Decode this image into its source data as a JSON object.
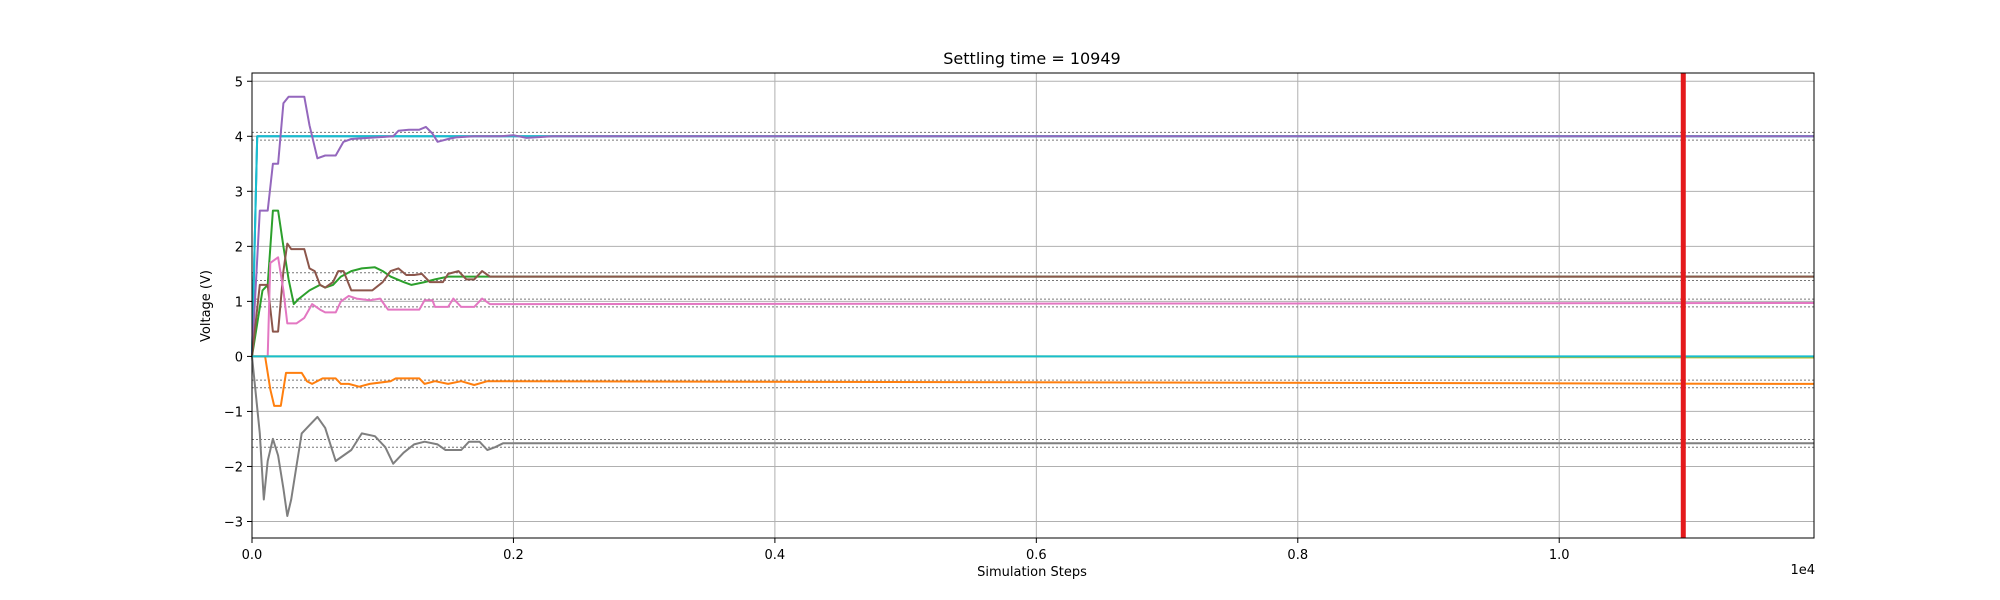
{
  "chart_data": {
    "type": "line",
    "title": "Settling time = 10949",
    "xlabel": "Simulation Steps",
    "ylabel": "Voltage (V)",
    "x_offset_label": "1e4",
    "xlim": [
      0,
      11949
    ],
    "ylim": [
      -3.3,
      5.15
    ],
    "xticks": [
      0,
      2000,
      4000,
      6000,
      8000,
      10000
    ],
    "xtick_labels": [
      "0.0",
      "0.2",
      "0.4",
      "0.6",
      "0.8",
      "1.0"
    ],
    "yticks": [
      -3,
      -2,
      -1,
      0,
      1,
      2,
      3,
      4,
      5
    ],
    "ytick_labels": [
      "−3",
      "−2",
      "−1",
      "0",
      "1",
      "2",
      "3",
      "4",
      "5"
    ],
    "grid": true,
    "legend": "none",
    "settling_time": 10949,
    "settling_color": "#e41a1c",
    "targets": [
      4.0,
      1.45,
      0.97,
      -0.5,
      -1.58
    ],
    "target_band": 0.07,
    "series": [
      {
        "color": "#1f77b4",
        "points": [
          [
            0,
            0
          ],
          [
            40,
            4.0
          ],
          [
            11949,
            4.0
          ]
        ]
      },
      {
        "color": "#17becf",
        "points": [
          [
            0,
            0
          ],
          [
            40,
            4.0
          ],
          [
            11949,
            4.0
          ]
        ]
      },
      {
        "color": "#9467bd",
        "points": [
          [
            0,
            0
          ],
          [
            60,
            2.65
          ],
          [
            120,
            2.65
          ],
          [
            160,
            3.5
          ],
          [
            200,
            3.5
          ],
          [
            240,
            4.6
          ],
          [
            280,
            4.72
          ],
          [
            400,
            4.72
          ],
          [
            440,
            4.2
          ],
          [
            500,
            3.6
          ],
          [
            560,
            3.65
          ],
          [
            640,
            3.65
          ],
          [
            700,
            3.9
          ],
          [
            760,
            3.95
          ],
          [
            1080,
            4.0
          ],
          [
            1120,
            4.1
          ],
          [
            1200,
            4.12
          ],
          [
            1280,
            4.12
          ],
          [
            1330,
            4.17
          ],
          [
            1380,
            4.05
          ],
          [
            1420,
            3.9
          ],
          [
            1500,
            3.95
          ],
          [
            1560,
            3.98
          ],
          [
            1700,
            4.0
          ],
          [
            1900,
            4.0
          ],
          [
            2000,
            4.02
          ],
          [
            2100,
            3.97
          ],
          [
            2300,
            4.0
          ],
          [
            11949,
            4.0
          ]
        ]
      },
      {
        "color": "#2ca02c",
        "points": [
          [
            0,
            0
          ],
          [
            80,
            1.2
          ],
          [
            120,
            1.3
          ],
          [
            160,
            2.65
          ],
          [
            200,
            2.65
          ],
          [
            240,
            2.0
          ],
          [
            280,
            1.4
          ],
          [
            320,
            0.95
          ],
          [
            360,
            1.05
          ],
          [
            440,
            1.2
          ],
          [
            520,
            1.3
          ],
          [
            560,
            1.25
          ],
          [
            620,
            1.3
          ],
          [
            680,
            1.45
          ],
          [
            760,
            1.55
          ],
          [
            840,
            1.6
          ],
          [
            940,
            1.62
          ],
          [
            1000,
            1.55
          ],
          [
            1060,
            1.45
          ],
          [
            1160,
            1.35
          ],
          [
            1220,
            1.3
          ],
          [
            1320,
            1.35
          ],
          [
            1400,
            1.4
          ],
          [
            1500,
            1.45
          ],
          [
            1700,
            1.45
          ],
          [
            11949,
            1.45
          ]
        ]
      },
      {
        "color": "#8c564b",
        "points": [
          [
            0,
            0
          ],
          [
            60,
            1.3
          ],
          [
            120,
            1.3
          ],
          [
            160,
            0.45
          ],
          [
            200,
            0.45
          ],
          [
            240,
            1.55
          ],
          [
            270,
            2.05
          ],
          [
            300,
            1.95
          ],
          [
            400,
            1.95
          ],
          [
            440,
            1.6
          ],
          [
            480,
            1.55
          ],
          [
            520,
            1.3
          ],
          [
            560,
            1.25
          ],
          [
            620,
            1.35
          ],
          [
            660,
            1.55
          ],
          [
            700,
            1.55
          ],
          [
            760,
            1.2
          ],
          [
            800,
            1.2
          ],
          [
            920,
            1.2
          ],
          [
            1000,
            1.35
          ],
          [
            1060,
            1.55
          ],
          [
            1120,
            1.6
          ],
          [
            1180,
            1.48
          ],
          [
            1240,
            1.48
          ],
          [
            1300,
            1.5
          ],
          [
            1360,
            1.35
          ],
          [
            1460,
            1.35
          ],
          [
            1500,
            1.5
          ],
          [
            1580,
            1.55
          ],
          [
            1640,
            1.4
          ],
          [
            1700,
            1.4
          ],
          [
            1760,
            1.55
          ],
          [
            1820,
            1.45
          ],
          [
            1900,
            1.45
          ],
          [
            11949,
            1.45
          ]
        ]
      },
      {
        "color": "#e377c2",
        "points": [
          [
            0,
            0
          ],
          [
            120,
            0
          ],
          [
            140,
            1.7
          ],
          [
            200,
            1.8
          ],
          [
            240,
            1.2
          ],
          [
            270,
            0.6
          ],
          [
            340,
            0.6
          ],
          [
            400,
            0.7
          ],
          [
            460,
            0.95
          ],
          [
            520,
            0.85
          ],
          [
            560,
            0.8
          ],
          [
            640,
            0.8
          ],
          [
            680,
            1.0
          ],
          [
            740,
            1.1
          ],
          [
            800,
            1.05
          ],
          [
            900,
            1.02
          ],
          [
            980,
            1.05
          ],
          [
            1040,
            0.85
          ],
          [
            1280,
            0.85
          ],
          [
            1320,
            1.02
          ],
          [
            1380,
            1.02
          ],
          [
            1400,
            0.9
          ],
          [
            1500,
            0.9
          ],
          [
            1540,
            1.05
          ],
          [
            1600,
            0.9
          ],
          [
            1700,
            0.9
          ],
          [
            1760,
            1.05
          ],
          [
            1820,
            0.95
          ],
          [
            1900,
            0.95
          ],
          [
            11949,
            0.97
          ]
        ]
      },
      {
        "color": "#bcbd22",
        "points": [
          [
            0,
            0
          ],
          [
            6000,
            0
          ],
          [
            11949,
            -0.02
          ]
        ]
      },
      {
        "color": "#7f7f7f",
        "points": [
          [
            0,
            0
          ],
          [
            60,
            -1.4
          ],
          [
            90,
            -2.6
          ],
          [
            120,
            -1.9
          ],
          [
            160,
            -1.5
          ],
          [
            200,
            -1.8
          ],
          [
            240,
            -2.4
          ],
          [
            270,
            -2.9
          ],
          [
            300,
            -2.6
          ],
          [
            340,
            -2.0
          ],
          [
            380,
            -1.4
          ],
          [
            440,
            -1.25
          ],
          [
            500,
            -1.1
          ],
          [
            560,
            -1.3
          ],
          [
            600,
            -1.6
          ],
          [
            640,
            -1.9
          ],
          [
            700,
            -1.8
          ],
          [
            760,
            -1.7
          ],
          [
            840,
            -1.4
          ],
          [
            940,
            -1.45
          ],
          [
            1020,
            -1.65
          ],
          [
            1080,
            -1.95
          ],
          [
            1160,
            -1.75
          ],
          [
            1240,
            -1.6
          ],
          [
            1320,
            -1.55
          ],
          [
            1420,
            -1.6
          ],
          [
            1480,
            -1.7
          ],
          [
            1600,
            -1.7
          ],
          [
            1660,
            -1.55
          ],
          [
            1740,
            -1.55
          ],
          [
            1800,
            -1.7
          ],
          [
            1860,
            -1.65
          ],
          [
            1920,
            -1.58
          ],
          [
            11949,
            -1.58
          ]
        ]
      },
      {
        "color": "#ff7f0e",
        "points": [
          [
            0,
            0
          ],
          [
            100,
            0
          ],
          [
            140,
            -0.6
          ],
          [
            170,
            -0.9
          ],
          [
            220,
            -0.9
          ],
          [
            260,
            -0.3
          ],
          [
            380,
            -0.3
          ],
          [
            420,
            -0.45
          ],
          [
            460,
            -0.5
          ],
          [
            540,
            -0.4
          ],
          [
            640,
            -0.4
          ],
          [
            680,
            -0.5
          ],
          [
            740,
            -0.5
          ],
          [
            820,
            -0.55
          ],
          [
            900,
            -0.5
          ],
          [
            1060,
            -0.45
          ],
          [
            1100,
            -0.4
          ],
          [
            1280,
            -0.4
          ],
          [
            1320,
            -0.5
          ],
          [
            1400,
            -0.45
          ],
          [
            1500,
            -0.5
          ],
          [
            1600,
            -0.45
          ],
          [
            1700,
            -0.52
          ],
          [
            1800,
            -0.45
          ],
          [
            11949,
            -0.5
          ]
        ]
      },
      {
        "color": "#17becf",
        "points": [
          [
            0,
            0
          ],
          [
            6000,
            0
          ],
          [
            11949,
            0
          ]
        ]
      }
    ]
  }
}
